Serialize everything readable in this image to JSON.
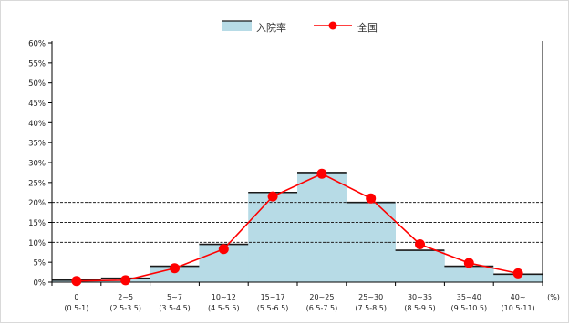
{
  "chart_data": {
    "type": "bar",
    "title": "",
    "xlabel": "",
    "ylabel": "",
    "ylim": [
      0,
      0.6
    ],
    "yticks": [
      {
        "value": 0.0,
        "label": "0%"
      },
      {
        "value": 0.05,
        "label": "5%"
      },
      {
        "value": 0.1,
        "label": "10%"
      },
      {
        "value": 0.15,
        "label": "15%"
      },
      {
        "value": 0.2,
        "label": "20%"
      },
      {
        "value": 0.25,
        "label": "25%"
      },
      {
        "value": 0.3,
        "label": "30%"
      },
      {
        "value": 0.35,
        "label": "35%"
      },
      {
        "value": 0.4,
        "label": "40%"
      },
      {
        "value": 0.45,
        "label": "45%"
      },
      {
        "value": 0.5,
        "label": "50%"
      },
      {
        "value": 0.55,
        "label": "55%"
      },
      {
        "value": 0.6,
        "label": "60%"
      }
    ],
    "gridlines": [
      0.1,
      0.15,
      0.2
    ],
    "grid": false,
    "legend_position": "top",
    "categories": [
      {
        "line1": "0",
        "line2": "(0.5-1)"
      },
      {
        "line1": "2~5",
        "line2": "(2.5-3.5)"
      },
      {
        "line1": "5~7",
        "line2": "(3.5-4.5)"
      },
      {
        "line1": "10~12",
        "line2": "(4.5-5.5)"
      },
      {
        "line1": "15~17",
        "line2": "(5.5-6.5)"
      },
      {
        "line1": "20~25",
        "line2": "(6.5-7.5)"
      },
      {
        "line1": "25~30",
        "line2": "(7.5-8.5)"
      },
      {
        "line1": "30~35",
        "line2": "(8.5-9.5)"
      },
      {
        "line1": "35~40",
        "line2": "(9.5-10.5)"
      },
      {
        "line1": "40~",
        "line2": "(10.5-11)"
      }
    ],
    "x_end_label": "(%)",
    "series": [
      {
        "name": "入院率",
        "type": "area-step",
        "color": "#b7dbe6",
        "edge_color": "#1a1a1a",
        "values": [
          0.005,
          0.01,
          0.04,
          0.095,
          0.225,
          0.275,
          0.2,
          0.08,
          0.04,
          0.02
        ]
      },
      {
        "name": "全国",
        "type": "line",
        "color": "#ff0000",
        "values": [
          0.003,
          0.005,
          0.035,
          0.083,
          0.215,
          0.272,
          0.21,
          0.095,
          0.048,
          0.022
        ]
      }
    ]
  }
}
